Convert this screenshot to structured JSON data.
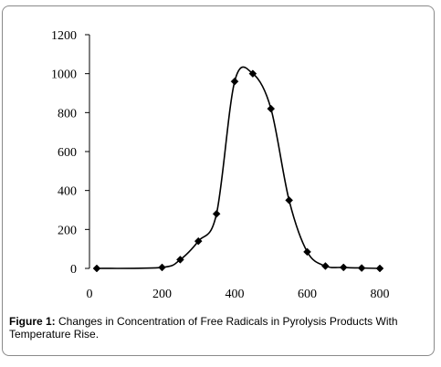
{
  "chart_data": {
    "type": "line",
    "title": "",
    "xlabel": "",
    "ylabel": "",
    "xlim": [
      0,
      800
    ],
    "ylim": [
      0,
      1200
    ],
    "x_ticks": [
      "0",
      "200",
      "400",
      "600",
      "800"
    ],
    "y_ticks": [
      "0",
      "200",
      "400",
      "600",
      "800",
      "1000",
      "1200"
    ],
    "grid": false,
    "legend": "none",
    "series": [
      {
        "x": [
          20,
          200,
          250,
          300,
          350,
          400,
          450,
          500,
          550,
          600,
          650,
          700,
          750,
          800
        ],
        "y": [
          0,
          5,
          45,
          140,
          280,
          960,
          1000,
          820,
          350,
          85,
          12,
          5,
          2,
          0
        ],
        "marker": "diamond",
        "smooth": true,
        "color": "#000000"
      }
    ]
  },
  "caption": {
    "label": "Figure 1:",
    "text": " Changes in Concentration of Free Radicals in Pyrolysis Products With Temperature Rise."
  }
}
